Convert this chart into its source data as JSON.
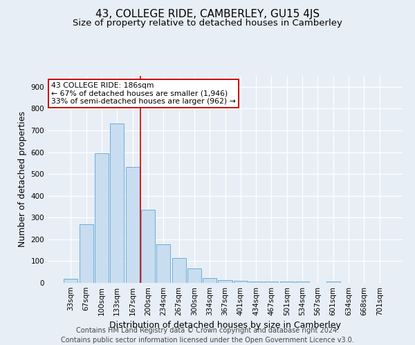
{
  "title": "43, COLLEGE RIDE, CAMBERLEY, GU15 4JS",
  "subtitle": "Size of property relative to detached houses in Camberley",
  "xlabel": "Distribution of detached houses by size in Camberley",
  "ylabel": "Number of detached properties",
  "categories": [
    "33sqm",
    "67sqm",
    "100sqm",
    "133sqm",
    "167sqm",
    "200sqm",
    "234sqm",
    "267sqm",
    "300sqm",
    "334sqm",
    "367sqm",
    "401sqm",
    "434sqm",
    "467sqm",
    "501sqm",
    "534sqm",
    "567sqm",
    "601sqm",
    "634sqm",
    "668sqm",
    "701sqm"
  ],
  "values": [
    20,
    270,
    595,
    730,
    533,
    335,
    178,
    115,
    67,
    22,
    12,
    10,
    7,
    6,
    6,
    5,
    0,
    7,
    0,
    0,
    0
  ],
  "bar_color": "#c9ddf0",
  "bar_edge_color": "#6aaed6",
  "background_color": "#e8eef5",
  "grid_color": "#ffffff",
  "vline_color": "#cc0000",
  "vline_x_index": 4.5,
  "annotation_line1": "43 COLLEGE RIDE: 186sqm",
  "annotation_line2": "← 67% of detached houses are smaller (1,946)",
  "annotation_line3": "33% of semi-detached houses are larger (962) →",
  "annotation_box_facecolor": "#ffffff",
  "annotation_box_edgecolor": "#cc0000",
  "footer_line1": "Contains HM Land Registry data © Crown copyright and database right 2024.",
  "footer_line2": "Contains public sector information licensed under the Open Government Licence v3.0.",
  "ylim": [
    0,
    950
  ],
  "yticks": [
    0,
    100,
    200,
    300,
    400,
    500,
    600,
    700,
    800,
    900
  ],
  "title_fontsize": 11,
  "subtitle_fontsize": 9.5,
  "ylabel_fontsize": 9,
  "xlabel_fontsize": 9,
  "tick_fontsize": 7.5,
  "annotation_fontsize": 7.8,
  "footer_fontsize": 7
}
